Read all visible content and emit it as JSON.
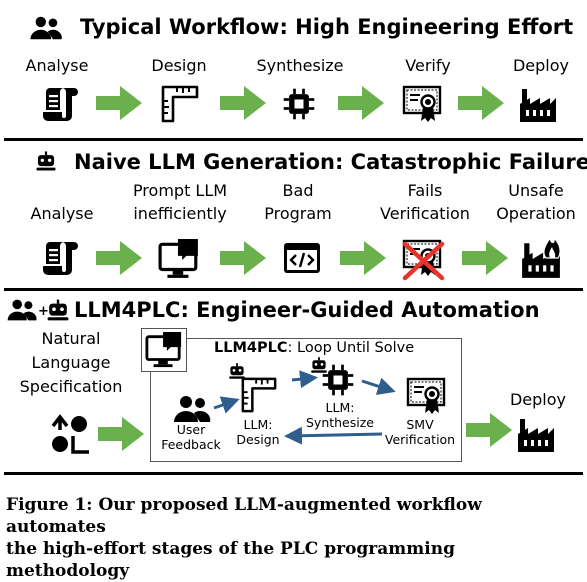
{
  "sections": [
    {
      "title": "Typical  Workflow: High Engineering Effort",
      "steps": [
        "Analyse",
        "Design",
        "Synthesize",
        "Verify",
        "Deploy"
      ]
    },
    {
      "title": "Naive LLM Generation: Catastrophic Failure",
      "steps": [
        {
          "line1": "",
          "line2": "Analyse"
        },
        {
          "line1": "Prompt LLM",
          "line2": "inefficiently"
        },
        {
          "line1": "Bad",
          "line2": "Program"
        },
        {
          "line1": "Fails",
          "line2": "Verification"
        },
        {
          "line1": "Unsafe",
          "line2": "Operation"
        }
      ]
    },
    {
      "title": "LLM4PLC: Engineer-Guided Automation",
      "spec": [
        "Natural",
        "Language",
        "Specification"
      ],
      "loop_title_bold": "LLM4PLC",
      "loop_title_rest": ": Loop Until Solve",
      "loop_nodes": [
        {
          "line1": "User",
          "line2": "Feedback"
        },
        {
          "line1": "LLM:",
          "line2": "Design"
        },
        {
          "line1": "LLM:",
          "line2": "Synthesize"
        },
        {
          "line1": "SMV",
          "line2": "Verification"
        }
      ],
      "deploy": "Deploy"
    }
  ],
  "caption": [
    "Figure 1: Our proposed LLM-augmented workflow automates",
    "the high-effort stages of the PLC programming methodology"
  ],
  "colors": {
    "arrow": "#6ab04c",
    "loop_arrow": "#2e5d8e",
    "fail_x": "#e8322a",
    "fire": "#000000"
  },
  "icons": [
    "users-icon",
    "robot-icon",
    "scroll-icon",
    "ruler-icon",
    "chip-icon",
    "certificate-icon",
    "factory-icon",
    "monitor-chat-icon",
    "code-window-icon",
    "fire-factory-icon",
    "shapes-icon"
  ]
}
